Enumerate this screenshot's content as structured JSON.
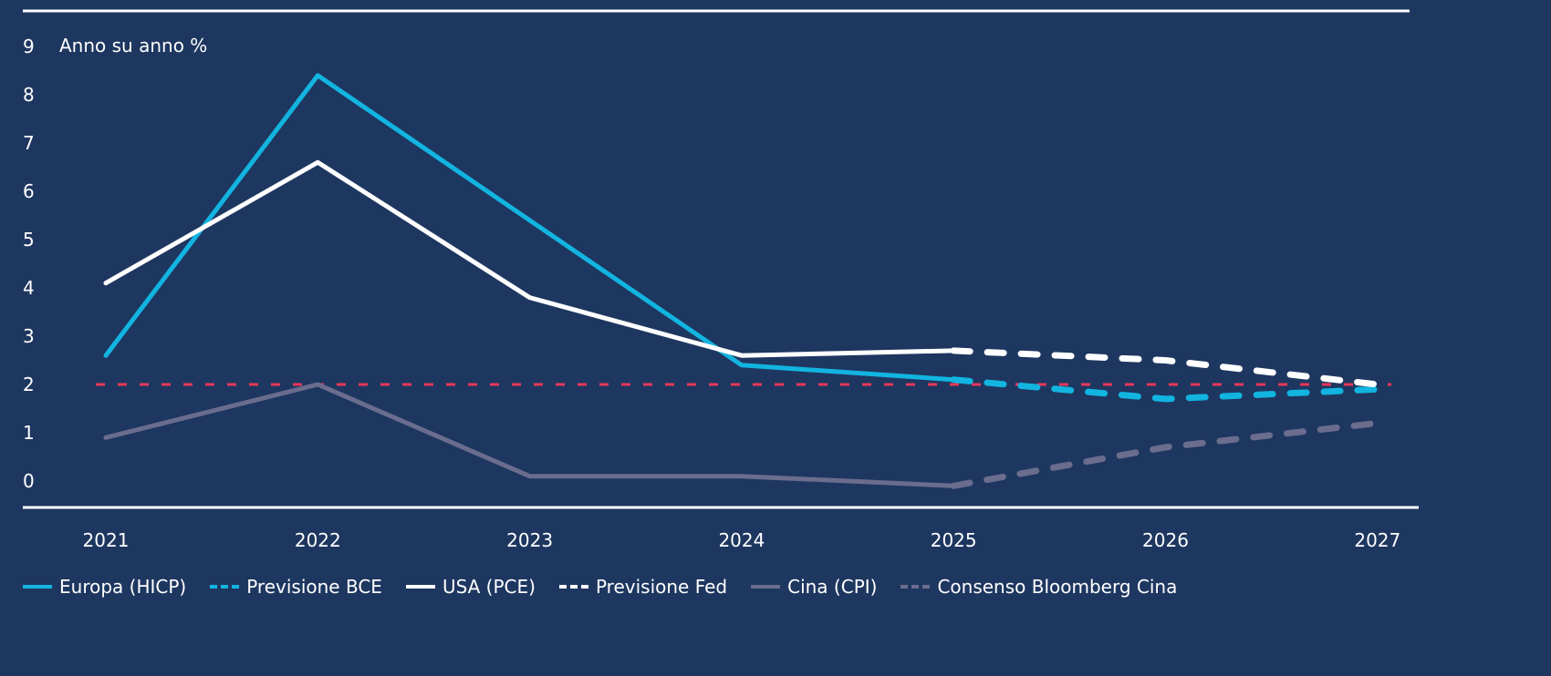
{
  "chart_data": {
    "type": "line",
    "ylabel": "Anno su anno %",
    "ylim": [
      0,
      9
    ],
    "yticks": [
      "0",
      "1",
      "2",
      "3",
      "4",
      "5",
      "6",
      "7",
      "8",
      "9"
    ],
    "x": [
      "2021",
      "2022",
      "2023",
      "2024",
      "2025",
      "2026",
      "2027"
    ],
    "reference_line": {
      "value": 2.0,
      "color": "#e8375a",
      "style": "dashed"
    },
    "series": [
      {
        "name": "Europa (HICP)",
        "color": "#12b4e0",
        "style": "solid",
        "points": [
          [
            "2021",
            2.6
          ],
          [
            "2022",
            8.4
          ],
          [
            "2023",
            5.4
          ],
          [
            "2024",
            2.4
          ],
          [
            "2025",
            2.1
          ]
        ]
      },
      {
        "name": "Previsione BCE",
        "color": "#12b4e0",
        "style": "dashed",
        "points": [
          [
            "2025",
            2.1
          ],
          [
            "2026",
            1.7
          ],
          [
            "2027",
            1.9
          ]
        ]
      },
      {
        "name": "USA (PCE)",
        "color": "#ffffff",
        "style": "solid",
        "points": [
          [
            "2021",
            4.1
          ],
          [
            "2022",
            6.6
          ],
          [
            "2023",
            3.8
          ],
          [
            "2024",
            2.6
          ],
          [
            "2025",
            2.7
          ]
        ]
      },
      {
        "name": "Previsione Fed",
        "color": "#ffffff",
        "style": "dashed",
        "points": [
          [
            "2025",
            2.7
          ],
          [
            "2026",
            2.5
          ],
          [
            "2027",
            2.0
          ]
        ]
      },
      {
        "name": "Cina (CPI)",
        "color": "#6b6d8e",
        "style": "solid",
        "points": [
          [
            "2021",
            0.9
          ],
          [
            "2022",
            2.0
          ],
          [
            "2023",
            0.1
          ],
          [
            "2024",
            0.1
          ],
          [
            "2025",
            -0.1
          ]
        ]
      },
      {
        "name": "Consenso Bloomberg Cina",
        "color": "#6b6d8e",
        "style": "dashed",
        "points": [
          [
            "2025",
            -0.1
          ],
          [
            "2026",
            0.7
          ],
          [
            "2027",
            1.2
          ]
        ]
      }
    ],
    "legend_position": "bottom",
    "grid": false
  }
}
